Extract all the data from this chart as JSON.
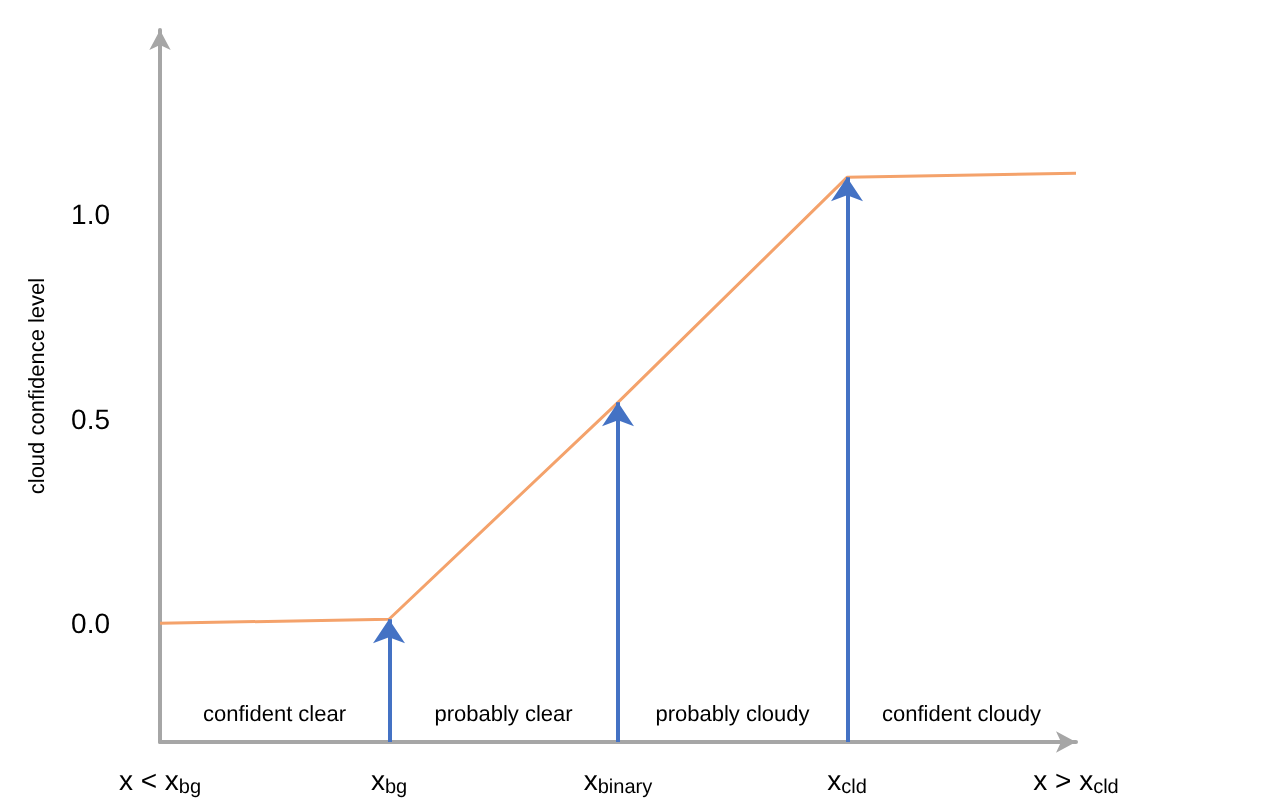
{
  "chart_data": {
    "type": "line",
    "ylabel": "cloud confidence level",
    "categories": [
      "x < x$_{bg}$",
      "x$_{bg}$",
      "x$_{binary}$",
      "x$_{cld}$",
      "x > x$_{cld}$"
    ],
    "series": [
      {
        "color": "#f4a26b",
        "values": [
          0.0,
          0.01,
          0.54,
          1.09,
          1.1
        ]
      }
    ],
    "ylim": [
      -0.29,
      1.45
    ],
    "yticks": [
      {
        "value": 0,
        "label": "0.0"
      },
      {
        "value": 0.5,
        "label": "0.5"
      },
      {
        "value": 1,
        "label": "1.0"
      }
    ],
    "annotations": [
      "confident clear",
      "probably clear",
      "probably cloudy",
      "confident cloudy"
    ],
    "grid": false,
    "marker": "none",
    "line_style": "solid"
  }
}
